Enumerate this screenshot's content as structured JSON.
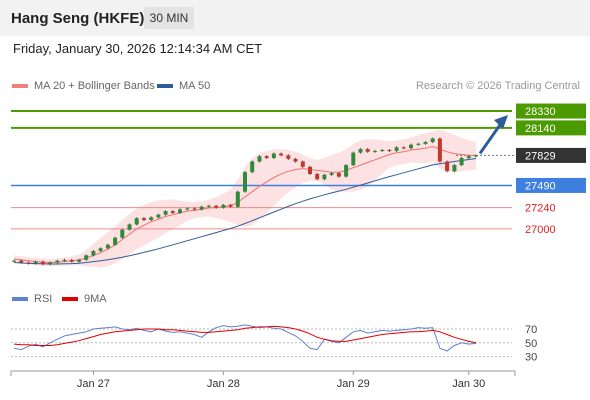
{
  "header": {
    "title": "Hang Seng (HKFE)",
    "timeframe": "30 MIN",
    "datetime": "Friday, January 30, 2026 12:14:34 AM CET",
    "research": "Research © 2026 Trading Central"
  },
  "chart_data": [
    {
      "type": "candlestick",
      "title": "Hang Seng (HKFE)",
      "legend": [
        {
          "name": "MA 20 + Bollinger Bands",
          "color": "#f08080"
        },
        {
          "name": "MA 50",
          "color": "#2e5c9a"
        }
      ],
      "ylim": [
        26400,
        28500
      ],
      "x_ticks": [
        "Jan 27",
        "Jan 28",
        "Jan 29",
        "Jan 30"
      ],
      "x_tick_index": [
        11,
        29,
        47,
        63
      ],
      "levels": [
        {
          "value": 28330,
          "label": "28330",
          "color": "#4a9a00",
          "kind": "resistance"
        },
        {
          "value": 28140,
          "label": "28140",
          "color": "#4a9a00",
          "kind": "resistance"
        },
        {
          "value": 27829,
          "label": "27829",
          "color": "#333333",
          "kind": "current"
        },
        {
          "value": 27490,
          "label": "27490",
          "color": "#3f7fe0",
          "kind": "pivot"
        },
        {
          "value": 27240,
          "label": "27240",
          "color": "#e03030",
          "kind": "support"
        },
        {
          "value": 27000,
          "label": "27000",
          "color": "#e03030",
          "kind": "support"
        }
      ],
      "close": [
        26640,
        26620,
        26610,
        26630,
        26600,
        26620,
        26640,
        26650,
        26630,
        26650,
        26700,
        26750,
        26780,
        26820,
        26900,
        26990,
        27050,
        27120,
        27100,
        27130,
        27160,
        27200,
        27180,
        27220,
        27230,
        27220,
        27250,
        27260,
        27240,
        27270,
        27250,
        27420,
        27640,
        27760,
        27820,
        27800,
        27850,
        27830,
        27790,
        27760,
        27700,
        27620,
        27560,
        27610,
        27630,
        27590,
        27720,
        27860,
        27900,
        27870,
        27880,
        27890,
        27880,
        27920,
        27910,
        27950,
        27960,
        27980,
        28020,
        27760,
        27650,
        27720,
        27800,
        27820,
        27829
      ],
      "ma20": [
        26660,
        26650,
        26640,
        26630,
        26625,
        26620,
        26625,
        26630,
        26640,
        26650,
        26670,
        26700,
        26730,
        26770,
        26820,
        26880,
        26940,
        27000,
        27040,
        27080,
        27110,
        27140,
        27160,
        27180,
        27200,
        27210,
        27220,
        27235,
        27240,
        27250,
        27260,
        27300,
        27360,
        27420,
        27480,
        27530,
        27580,
        27620,
        27650,
        27670,
        27680,
        27670,
        27660,
        27650,
        27640,
        27640,
        27660,
        27690,
        27720,
        27750,
        27780,
        27810,
        27840,
        27860,
        27870,
        27890,
        27900,
        27910,
        27930,
        27900,
        27870,
        27850,
        27840,
        27830,
        27825
      ],
      "bb_upper": [
        26700,
        26690,
        26680,
        26670,
        26665,
        26660,
        26665,
        26675,
        26690,
        26710,
        26760,
        26830,
        26900,
        26960,
        27030,
        27100,
        27170,
        27230,
        27270,
        27300,
        27320,
        27330,
        27330,
        27320,
        27310,
        27300,
        27310,
        27330,
        27360,
        27400,
        27440,
        27560,
        27700,
        27800,
        27850,
        27880,
        27900,
        27900,
        27890,
        27870,
        27840,
        27800,
        27780,
        27800,
        27830,
        27860,
        27900,
        27960,
        28000,
        28010,
        28010,
        28000,
        27990,
        28000,
        28010,
        28030,
        28060,
        28080,
        28100,
        28120,
        28090,
        28060,
        28030,
        28000,
        27980
      ],
      "bb_lower": [
        26620,
        26610,
        26600,
        26590,
        26585,
        26580,
        26585,
        26585,
        26590,
        26590,
        26580,
        26570,
        26560,
        26580,
        26610,
        26660,
        26710,
        26770,
        26810,
        26860,
        26900,
        26950,
        26990,
        27040,
        27090,
        27120,
        27130,
        27140,
        27120,
        27100,
        27080,
        27040,
        27020,
        27040,
        27110,
        27180,
        27260,
        27340,
        27410,
        27470,
        27520,
        27540,
        27540,
        27500,
        27450,
        27420,
        27420,
        27420,
        27440,
        27490,
        27550,
        27620,
        27690,
        27720,
        27730,
        27750,
        27740,
        27740,
        27760,
        27680,
        27650,
        27640,
        27650,
        27660,
        27670
      ],
      "ma50": [
        26620,
        26615,
        26610,
        26608,
        26605,
        26603,
        26603,
        26605,
        26608,
        26612,
        26620,
        26630,
        26640,
        26652,
        26665,
        26680,
        26697,
        26715,
        26734,
        26754,
        26775,
        26797,
        26820,
        26843,
        26866,
        26889,
        26912,
        26935,
        26958,
        26981,
        27004,
        27030,
        27060,
        27092,
        27125,
        27158,
        27190,
        27222,
        27254,
        27284,
        27312,
        27338,
        27362,
        27385,
        27406,
        27426,
        27447,
        27470,
        27494,
        27518,
        27542,
        27566,
        27590,
        27612,
        27634,
        27656,
        27678,
        27700,
        27722,
        27736,
        27748,
        27760,
        27772,
        27783,
        27794
      ]
    },
    {
      "type": "line",
      "legend": [
        {
          "name": "RSI",
          "color": "#6080d0"
        },
        {
          "name": "9MA",
          "color": "#e00000"
        }
      ],
      "ylim": [
        22,
        86
      ],
      "y_ticks": [
        70,
        50,
        30
      ],
      "rsi": [
        42,
        40,
        45,
        48,
        44,
        50,
        55,
        60,
        62,
        64,
        66,
        70,
        71,
        72,
        73,
        70,
        69,
        71,
        68,
        66,
        70,
        67,
        65,
        66,
        64,
        62,
        58,
        66,
        72,
        75,
        73,
        74,
        76,
        74,
        72,
        73,
        71,
        70,
        65,
        60,
        52,
        42,
        40,
        55,
        52,
        50,
        58,
        66,
        68,
        64,
        66,
        68,
        67,
        68,
        69,
        70,
        72,
        71,
        72,
        42,
        38,
        46,
        50,
        48,
        49
      ],
      "rsi_ma9": [
        48,
        47,
        47,
        46,
        46,
        46,
        47,
        49,
        51,
        53,
        56,
        59,
        62,
        64,
        66,
        67,
        68,
        69,
        70,
        70,
        70,
        69,
        69,
        68,
        67,
        66,
        65,
        65,
        66,
        67,
        68,
        69,
        71,
        72,
        73,
        73,
        74,
        73,
        72,
        70,
        67,
        63,
        58,
        55,
        53,
        52,
        52,
        54,
        56,
        58,
        60,
        62,
        63,
        64,
        65,
        66,
        66,
        67,
        68,
        66,
        62,
        58,
        55,
        52,
        50
      ]
    }
  ]
}
